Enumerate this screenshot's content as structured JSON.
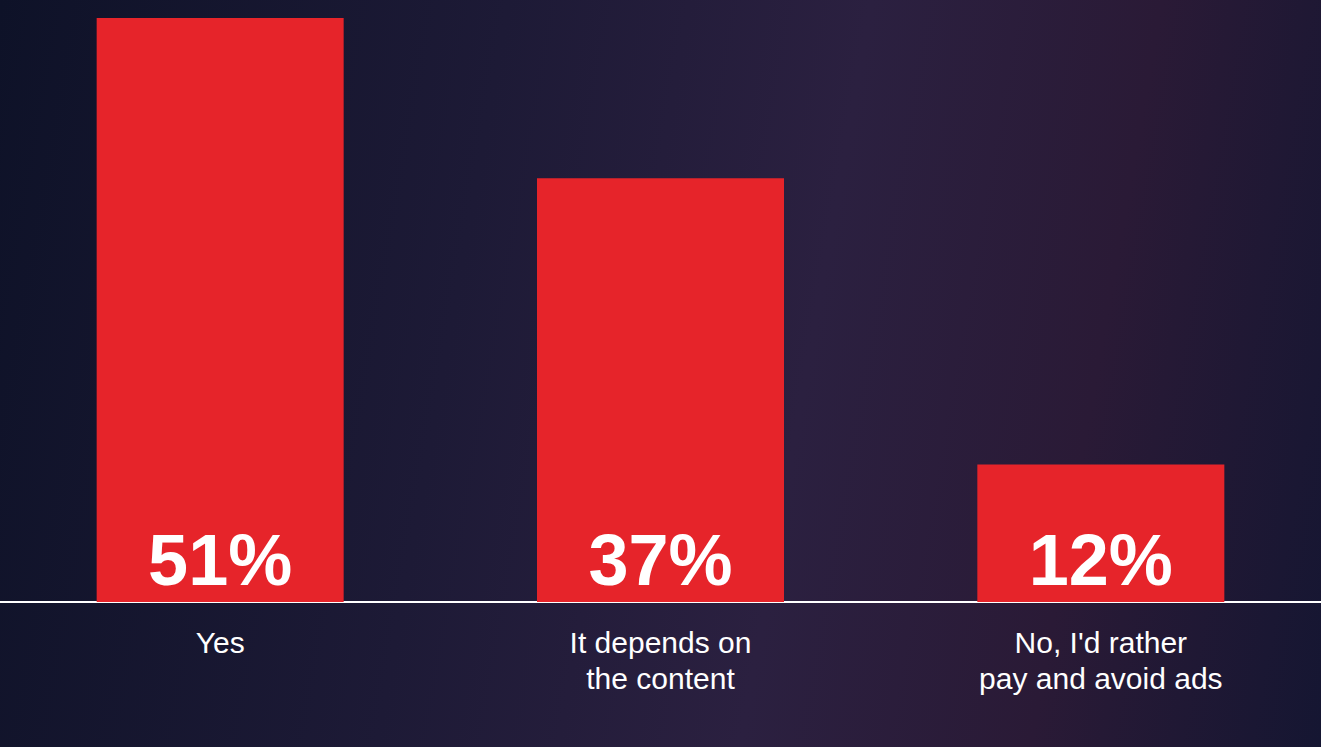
{
  "chart_data": {
    "type": "bar",
    "categories": [
      "Yes",
      "It depends on the content",
      "No, I'd rather pay and avoid ads"
    ],
    "values": [
      51,
      37,
      12
    ],
    "value_labels": [
      "51%",
      "37%",
      "12%"
    ],
    "color": "#e6242a",
    "ylim": [
      0,
      51
    ],
    "grid": false,
    "data_labels": true,
    "tick_labels": "x"
  }
}
